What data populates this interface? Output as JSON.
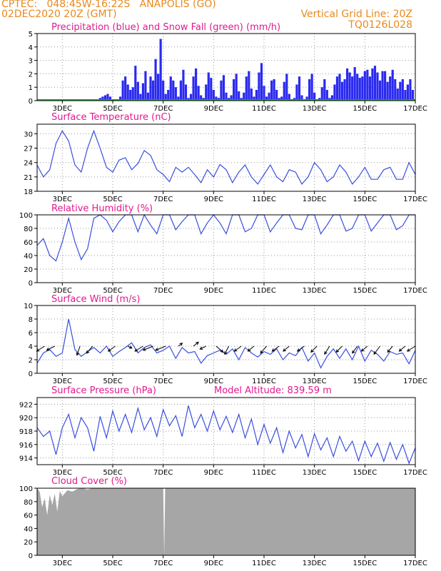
{
  "header": {
    "line1_left": "CPTEC:   048:45W-16:22S   ANAPOLIS (GO)",
    "line2_left": "02DEC2020 20Z (GMT)",
    "line1_right": "Vertical Grid Line: 20Z",
    "line2_right": "TQ0126L028"
  },
  "colors": {
    "header": "#e8891f",
    "title": "#e01a8e",
    "precip": "#2a2af0",
    "snow": "#1aa82e",
    "line": "#3a4ee0",
    "cloud": "#a6a6a6",
    "grid": "#9a9a9a"
  },
  "x_ticks": [
    "3DEC",
    "5DEC",
    "7DEC",
    "9DEC",
    "11DEC",
    "13DEC",
    "15DEC",
    "17DEC"
  ],
  "x_range": [
    "02DEC 20Z",
    "17DEC 20Z"
  ],
  "chart_data": [
    {
      "type": "bar",
      "id": "precip",
      "title": "Precipitation (blue) and Snow Fall (green) (mm/h)",
      "ylim": [
        0,
        5
      ],
      "yticks": [
        0,
        1,
        2,
        3,
        4,
        5
      ],
      "series": [
        {
          "name": "Precipitation (blue)",
          "day_offset": [
            2.5,
            2.6,
            2.7,
            2.8,
            2.9,
            3.0,
            3.1,
            3.2,
            3.3,
            3.4,
            3.5,
            3.6,
            3.7,
            3.8,
            3.9,
            4.0,
            4.1,
            4.2,
            4.3,
            4.4,
            4.5,
            4.6,
            4.7,
            4.8,
            4.9,
            5.0,
            5.1,
            5.2,
            5.3,
            5.4,
            5.5,
            5.6,
            5.7,
            5.8,
            5.9,
            6.0,
            6.1,
            6.2,
            6.3,
            6.4,
            6.5,
            6.6,
            6.7,
            6.8,
            6.9,
            7.0,
            7.1,
            7.2,
            7.3,
            7.4,
            7.5,
            7.6,
            7.7,
            7.8,
            7.9,
            8.0,
            8.1,
            8.2,
            8.3,
            8.4,
            8.5,
            8.6,
            8.7,
            8.8,
            8.9,
            9.0,
            9.1,
            9.2,
            9.3,
            9.4,
            9.5,
            9.6,
            9.7,
            9.8,
            9.9,
            10.0,
            10.1,
            10.2,
            10.3,
            10.4,
            10.5,
            10.6,
            10.7,
            10.8,
            10.9,
            11.0,
            11.1,
            11.2,
            11.3,
            11.4,
            11.5,
            11.6,
            11.7,
            11.8,
            11.9,
            12.0,
            12.1,
            12.2,
            12.3,
            12.4,
            12.5,
            12.6,
            12.7,
            12.8,
            12.9,
            13.0,
            13.1,
            13.2,
            13.3,
            13.4,
            13.5,
            13.6,
            13.7,
            13.8,
            13.9,
            14.0,
            14.1,
            14.2,
            14.3,
            14.4,
            14.5,
            14.6,
            14.7,
            14.8,
            14.9
          ],
          "values": [
            0.2,
            0.3,
            0.4,
            0.5,
            0.3,
            0.1,
            0.0,
            0.1,
            0.3,
            1.5,
            1.8,
            1.2,
            0.8,
            1.0,
            2.6,
            1.4,
            0.5,
            1.3,
            2.2,
            0.6,
            1.8,
            1.5,
            3.1,
            2.0,
            4.6,
            1.5,
            0.5,
            0.8,
            1.8,
            1.5,
            1.0,
            0.3,
            1.5,
            2.3,
            1.2,
            0.2,
            0.5,
            1.8,
            2.4,
            1.1,
            0.4,
            0.2,
            1.2,
            2.1,
            1.7,
            0.8,
            0.3,
            0.2,
            1.5,
            1.9,
            0.6,
            0.2,
            0.4,
            1.6,
            2.0,
            0.7,
            0.2,
            0.6,
            1.8,
            2.2,
            0.9,
            0.3,
            0.8,
            2.1,
            2.8,
            1.1,
            0.3,
            0.6,
            1.5,
            1.6,
            0.8,
            0.2,
            0.3,
            1.4,
            2.0,
            0.5,
            0.1,
            0.2,
            1.2,
            1.8,
            0.4,
            0.1,
            0.3,
            1.6,
            2.0,
            0.6,
            0.1,
            0.2,
            1.0,
            1.6,
            0.8,
            0.2,
            0.4,
            1.2,
            1.8,
            2.0,
            1.4,
            1.6,
            2.4,
            2.1,
            1.8,
            2.5,
            2.0,
            1.7,
            1.8,
            2.2,
            2.3,
            1.8,
            2.4,
            2.6,
            2.1,
            1.5,
            2.2,
            2.2,
            1.4,
            1.8,
            2.3,
            1.6,
            0.9,
            1.4,
            1.6,
            0.8,
            1.2,
            1.6,
            0.8
          ]
        },
        {
          "name": "Snow Fall (green)",
          "values": [
            0
          ]
        }
      ]
    },
    {
      "type": "line",
      "id": "temp",
      "title": "Surface Temperature (nC)",
      "ylim": [
        18,
        32
      ],
      "yticks": [
        18,
        21,
        24,
        27,
        30
      ],
      "day_offset": [
        0.0,
        0.25,
        0.5,
        0.75,
        1.0,
        1.25,
        1.5,
        1.75,
        2.0,
        2.25,
        2.5,
        2.75,
        3.0,
        3.25,
        3.5,
        3.75,
        4.0,
        4.25,
        4.5,
        4.75,
        5.0,
        5.25,
        5.5,
        5.75,
        6.0,
        6.25,
        6.5,
        6.75,
        7.0,
        7.25,
        7.5,
        7.75,
        8.0,
        8.25,
        8.5,
        8.75,
        9.0,
        9.25,
        9.5,
        9.75,
        10.0,
        10.25,
        10.5,
        10.75,
        11.0,
        11.25,
        11.5,
        11.75,
        12.0,
        12.25,
        12.5,
        12.75,
        13.0,
        13.25,
        13.5,
        13.75,
        14.0,
        14.25,
        14.5,
        14.75,
        15.0
      ],
      "values": [
        23.5,
        21.0,
        22.5,
        28.0,
        30.6,
        28.5,
        23.5,
        22.0,
        27.0,
        30.6,
        27.0,
        23.0,
        22.0,
        24.5,
        25.0,
        22.5,
        23.8,
        26.5,
        25.5,
        22.5,
        21.5,
        20.0,
        23.0,
        22.0,
        23.0,
        21.5,
        19.8,
        22.5,
        21.0,
        23.6,
        22.5,
        19.8,
        22.0,
        23.5,
        21.0,
        19.5,
        21.5,
        23.5,
        21.0,
        20.0,
        22.5,
        22.0,
        19.5,
        21.0,
        24.0,
        22.5,
        20.0,
        21.0,
        23.5,
        22.0,
        19.5,
        21.0,
        23.0,
        20.5,
        20.5,
        22.5,
        23.0,
        20.5,
        20.5,
        24.0,
        21.5
      ]
    },
    {
      "type": "line",
      "id": "rh",
      "title": "Relative Humidity (%)",
      "ylim": [
        0,
        100
      ],
      "yticks": [
        0,
        20,
        40,
        60,
        80,
        100
      ],
      "day_offset": [
        0.0,
        0.25,
        0.5,
        0.75,
        1.0,
        1.25,
        1.5,
        1.75,
        2.0,
        2.25,
        2.5,
        2.75,
        3.0,
        3.25,
        3.5,
        3.75,
        4.0,
        4.25,
        4.5,
        4.75,
        5.0,
        5.25,
        5.5,
        5.75,
        6.0,
        6.25,
        6.5,
        6.75,
        7.0,
        7.25,
        7.5,
        7.75,
        8.0,
        8.25,
        8.5,
        8.75,
        9.0,
        9.25,
        9.5,
        9.75,
        10.0,
        10.25,
        10.5,
        10.75,
        11.0,
        11.25,
        11.5,
        11.75,
        12.0,
        12.25,
        12.5,
        12.75,
        13.0,
        13.25,
        13.5,
        13.75,
        14.0,
        14.25,
        14.5,
        14.75,
        15.0
      ],
      "values": [
        55,
        65,
        40,
        32,
        60,
        95,
        60,
        34,
        50,
        95,
        100,
        92,
        75,
        90,
        100,
        100,
        75,
        100,
        85,
        72,
        100,
        100,
        78,
        90,
        100,
        100,
        72,
        88,
        100,
        88,
        72,
        100,
        100,
        75,
        80,
        100,
        100,
        75,
        88,
        100,
        100,
        80,
        78,
        100,
        100,
        72,
        85,
        100,
        100,
        76,
        80,
        100,
        100,
        76,
        88,
        100,
        100,
        78,
        84,
        100,
        100
      ]
    },
    {
      "type": "line",
      "id": "wind",
      "title": "Surface Wind (m/s)",
      "ylim": [
        0,
        10
      ],
      "yticks": [
        0,
        2,
        4,
        6,
        8,
        10
      ],
      "day_offset": [
        0.0,
        0.25,
        0.5,
        0.75,
        1.0,
        1.25,
        1.5,
        1.75,
        2.0,
        2.25,
        2.5,
        2.75,
        3.0,
        3.25,
        3.5,
        3.75,
        4.0,
        4.25,
        4.5,
        4.75,
        5.0,
        5.25,
        5.5,
        5.75,
        6.0,
        6.25,
        6.5,
        6.75,
        7.0,
        7.25,
        7.5,
        7.75,
        8.0,
        8.25,
        8.5,
        8.75,
        9.0,
        9.25,
        9.5,
        9.75,
        10.0,
        10.25,
        10.5,
        10.75,
        11.0,
        11.25,
        11.5,
        11.75,
        12.0,
        12.25,
        12.5,
        12.75,
        13.0,
        13.25,
        13.5,
        13.75,
        14.0,
        14.25,
        14.5,
        14.75,
        15.0
      ],
      "values": [
        1.5,
        3.0,
        3.5,
        2.5,
        3.0,
        8.0,
        3.5,
        2.5,
        3.2,
        3.8,
        3.0,
        4.0,
        2.5,
        3.2,
        3.8,
        4.5,
        3.0,
        3.8,
        4.2,
        3.0,
        3.4,
        4.0,
        2.2,
        3.8,
        3.0,
        3.2,
        1.5,
        2.6,
        3.0,
        3.4,
        2.8,
        3.6,
        2.0,
        3.8,
        3.0,
        2.4,
        3.2,
        2.8,
        3.6,
        2.0,
        3.0,
        2.6,
        3.8,
        1.8,
        3.0,
        0.8,
        2.5,
        3.6,
        2.2,
        3.6,
        2.0,
        4.0,
        1.8,
        3.4,
        2.8,
        1.8,
        3.2,
        2.8,
        3.0,
        1.4,
        3.4
      ],
      "arrows": {
        "day_offset": [
          0.3,
          0.7,
          1.7,
          2.2,
          3.1,
          3.6,
          4.2,
          4.6,
          5.1,
          5.6,
          6.2,
          6.7,
          7.1,
          7.6,
          8.1,
          8.6,
          9.1,
          9.6,
          10.0,
          10.6,
          11.1,
          11.6,
          12.1,
          12.7,
          13.1,
          13.6,
          14.1,
          14.6,
          15.0
        ],
        "u": [
          -0.8,
          -0.8,
          -0.3,
          -0.6,
          -0.7,
          0.4,
          -0.8,
          -1.0,
          -1.0,
          0.4,
          0.5,
          -0.6,
          0.7,
          -0.4,
          -0.7,
          -0.6,
          -0.6,
          -0.7,
          -0.6,
          -0.7,
          -0.6,
          -0.5,
          -0.6,
          -0.5,
          -0.6,
          -0.6,
          -0.5,
          -0.6,
          -0.8
        ],
        "v": [
          -0.5,
          -0.4,
          -0.9,
          -0.7,
          -0.5,
          -0.2,
          -0.5,
          -0.4,
          -0.4,
          0.3,
          0.4,
          -0.3,
          -0.6,
          -0.8,
          -0.5,
          -0.5,
          -0.7,
          -0.5,
          -0.5,
          -0.5,
          -0.6,
          -0.8,
          -0.6,
          -0.7,
          -0.5,
          -0.8,
          -0.6,
          -0.5,
          -0.5
        ]
      }
    },
    {
      "type": "line",
      "id": "pres",
      "title": "Surface Pressure (hPa)",
      "subtitle": "Model Altitude: 839.59 m",
      "ylim": [
        913,
        923
      ],
      "yticks": [
        914,
        916,
        918,
        920,
        922
      ],
      "day_offset": [
        0.0,
        0.25,
        0.5,
        0.75,
        1.0,
        1.25,
        1.5,
        1.75,
        2.0,
        2.25,
        2.5,
        2.75,
        3.0,
        3.25,
        3.5,
        3.75,
        4.0,
        4.25,
        4.5,
        4.75,
        5.0,
        5.25,
        5.5,
        5.75,
        6.0,
        6.25,
        6.5,
        6.75,
        7.0,
        7.25,
        7.5,
        7.75,
        8.0,
        8.25,
        8.5,
        8.75,
        9.0,
        9.25,
        9.5,
        9.75,
        10.0,
        10.25,
        10.5,
        10.75,
        11.0,
        11.25,
        11.5,
        11.75,
        12.0,
        12.25,
        12.5,
        12.75,
        13.0,
        13.25,
        13.5,
        13.75,
        14.0,
        14.25,
        14.5,
        14.75,
        15.0
      ],
      "values": [
        918.5,
        917.2,
        918.0,
        914.5,
        918.5,
        920.5,
        917.0,
        920.0,
        918.5,
        915.0,
        920.2,
        917.0,
        921.0,
        918.0,
        920.5,
        917.8,
        921.4,
        918.2,
        920.0,
        917.2,
        921.2,
        918.8,
        920.3,
        917.2,
        921.8,
        918.5,
        920.5,
        918.0,
        921.0,
        918.2,
        920.2,
        917.8,
        920.5,
        917.0,
        919.8,
        916.0,
        919.0,
        916.2,
        918.5,
        914.8,
        918.0,
        915.5,
        917.5,
        914.2,
        917.6,
        915.2,
        917.0,
        914.2,
        917.2,
        915.0,
        916.5,
        913.6,
        916.5,
        914.2,
        916.2,
        913.5,
        916.3,
        913.8,
        916.0,
        913.2,
        915.5
      ]
    },
    {
      "type": "area",
      "id": "cloud",
      "title": "Cloud Cover (%)",
      "ylim": [
        0,
        100
      ],
      "yticks": [
        0,
        20,
        40,
        60,
        80,
        100
      ],
      "day_offset": [
        0.0,
        0.1,
        0.2,
        0.3,
        0.4,
        0.5,
        0.6,
        0.7,
        0.8,
        0.9,
        1.0,
        1.2,
        1.4,
        1.6,
        1.8,
        2.0,
        2.2,
        5.0,
        5.04,
        5.08,
        15.0
      ],
      "values": [
        100,
        95,
        72,
        85,
        60,
        90,
        75,
        92,
        65,
        96,
        88,
        97,
        95,
        99,
        100,
        98,
        100,
        100,
        0,
        100,
        100
      ]
    }
  ]
}
